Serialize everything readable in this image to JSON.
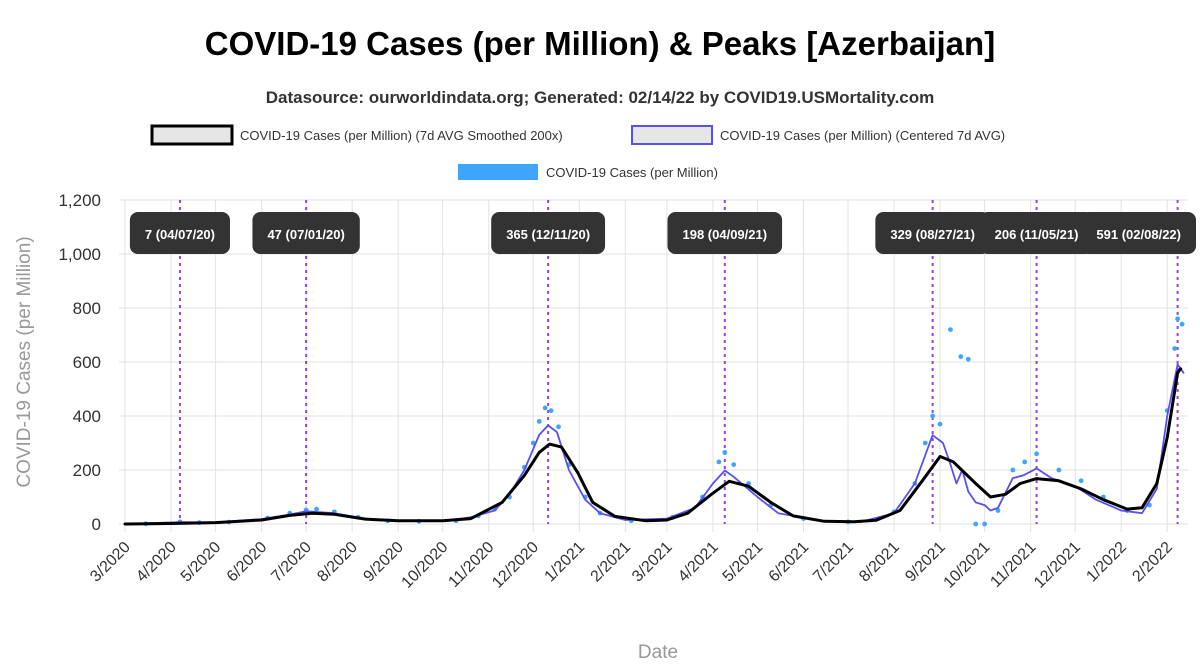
{
  "chart_data": {
    "type": "line",
    "title": "COVID-19 Cases (per Million) & Peaks [Azerbaijan]",
    "subtitle": "Datasource: ourworldindata.org; Generated: 02/14/22 by COVID19.USMortality.com",
    "xlabel": "Date",
    "ylabel": "COVID-19 Cases (per Million)",
    "ylim": [
      0,
      1200
    ],
    "y_ticks": [
      "0",
      "200",
      "400",
      "600",
      "800",
      "1,000",
      "1,200"
    ],
    "x_ticks": [
      "3/2020",
      "4/2020",
      "5/2020",
      "6/2020",
      "7/2020",
      "8/2020",
      "9/2020",
      "10/2020",
      "11/2020",
      "12/2020",
      "1/2021",
      "2/2021",
      "3/2021",
      "4/2021",
      "5/2021",
      "6/2021",
      "7/2021",
      "8/2021",
      "9/2021",
      "10/2021",
      "11/2021",
      "12/2021",
      "1/2022",
      "2/2022"
    ],
    "grid": true,
    "legend_position": "top",
    "legend": [
      {
        "name": "COVID-19 Cases (per Million) (7d AVG Smoothed 200x)",
        "color": "#000000",
        "style": "box"
      },
      {
        "name": "COVID-19 Cases (per Million) (Centered 7d AVG)",
        "color": "#5a4ff0",
        "style": "box"
      },
      {
        "name": "COVID-19 Cases (per Million)",
        "color": "#3fa6ff",
        "style": "bar"
      }
    ],
    "series": [
      {
        "name": "COVID-19 Cases (per Million) (7d AVG Smoothed 200x)",
        "color": "#000000",
        "points": [
          [
            "2020-03-01",
            0
          ],
          [
            "2020-04-01",
            2
          ],
          [
            "2020-05-01",
            5
          ],
          [
            "2020-06-01",
            15
          ],
          [
            "2020-06-20",
            32
          ],
          [
            "2020-07-05",
            40
          ],
          [
            "2020-07-20",
            36
          ],
          [
            "2020-08-10",
            18
          ],
          [
            "2020-09-01",
            12
          ],
          [
            "2020-10-01",
            12
          ],
          [
            "2020-10-20",
            20
          ],
          [
            "2020-11-10",
            80
          ],
          [
            "2020-11-25",
            180
          ],
          [
            "2020-12-05",
            265
          ],
          [
            "2020-12-12",
            296
          ],
          [
            "2020-12-20",
            285
          ],
          [
            "2020-12-31",
            190
          ],
          [
            "2021-01-10",
            80
          ],
          [
            "2021-01-25",
            28
          ],
          [
            "2021-02-15",
            12
          ],
          [
            "2021-03-01",
            15
          ],
          [
            "2021-03-15",
            40
          ],
          [
            "2021-03-31",
            110
          ],
          [
            "2021-04-12",
            158
          ],
          [
            "2021-04-25",
            140
          ],
          [
            "2021-05-10",
            80
          ],
          [
            "2021-05-25",
            30
          ],
          [
            "2021-06-15",
            10
          ],
          [
            "2021-07-05",
            8
          ],
          [
            "2021-07-20",
            14
          ],
          [
            "2021-08-05",
            50
          ],
          [
            "2021-08-20",
            160
          ],
          [
            "2021-09-01",
            250
          ],
          [
            "2021-09-10",
            230
          ],
          [
            "2021-09-25",
            150
          ],
          [
            "2021-10-05",
            100
          ],
          [
            "2021-10-15",
            110
          ],
          [
            "2021-10-25",
            150
          ],
          [
            "2021-11-05",
            168
          ],
          [
            "2021-11-20",
            160
          ],
          [
            "2021-12-05",
            130
          ],
          [
            "2021-12-20",
            90
          ],
          [
            "2022-01-05",
            55
          ],
          [
            "2022-01-15",
            60
          ],
          [
            "2022-01-25",
            150
          ],
          [
            "2022-02-01",
            320
          ],
          [
            "2022-02-08",
            560
          ],
          [
            "2022-02-10",
            575
          ]
        ]
      },
      {
        "name": "COVID-19 Cases (per Million) (Centered 7d AVG)",
        "color": "#5a4ff0",
        "points": [
          [
            "2020-03-01",
            0
          ],
          [
            "2020-04-07",
            7
          ],
          [
            "2020-05-01",
            6
          ],
          [
            "2020-06-01",
            18
          ],
          [
            "2020-06-20",
            35
          ],
          [
            "2020-07-01",
            47
          ],
          [
            "2020-07-20",
            40
          ],
          [
            "2020-08-10",
            20
          ],
          [
            "2020-09-01",
            12
          ],
          [
            "2020-10-01",
            11
          ],
          [
            "2020-10-20",
            25
          ],
          [
            "2020-11-05",
            50
          ],
          [
            "2020-11-15",
            110
          ],
          [
            "2020-11-25",
            200
          ],
          [
            "2020-12-05",
            330
          ],
          [
            "2020-12-11",
            365
          ],
          [
            "2020-12-17",
            340
          ],
          [
            "2020-12-25",
            200
          ],
          [
            "2021-01-05",
            90
          ],
          [
            "2021-01-15",
            40
          ],
          [
            "2021-02-01",
            15
          ],
          [
            "2021-03-01",
            20
          ],
          [
            "2021-03-20",
            60
          ],
          [
            "2021-04-01",
            150
          ],
          [
            "2021-04-09",
            198
          ],
          [
            "2021-04-15",
            175
          ],
          [
            "2021-05-01",
            100
          ],
          [
            "2021-05-15",
            40
          ],
          [
            "2021-06-15",
            10
          ],
          [
            "2021-07-10",
            8
          ],
          [
            "2021-08-01",
            40
          ],
          [
            "2021-08-15",
            150
          ],
          [
            "2021-08-27",
            329
          ],
          [
            "2021-09-03",
            300
          ],
          [
            "2021-09-08",
            220
          ],
          [
            "2021-09-12",
            150
          ],
          [
            "2021-09-16",
            200
          ],
          [
            "2021-09-20",
            120
          ],
          [
            "2021-09-25",
            80
          ],
          [
            "2021-10-01",
            70
          ],
          [
            "2021-10-05",
            50
          ],
          [
            "2021-10-10",
            60
          ],
          [
            "2021-10-20",
            170
          ],
          [
            "2021-10-27",
            180
          ],
          [
            "2021-11-05",
            206
          ],
          [
            "2021-11-15",
            170
          ],
          [
            "2021-12-01",
            140
          ],
          [
            "2021-12-15",
            90
          ],
          [
            "2022-01-01",
            50
          ],
          [
            "2022-01-15",
            40
          ],
          [
            "2022-01-25",
            130
          ],
          [
            "2022-02-01",
            400
          ],
          [
            "2022-02-08",
            591
          ],
          [
            "2022-02-12",
            560
          ]
        ]
      },
      {
        "name": "COVID-19 Cases (per Million)",
        "color": "#3fa6ff",
        "style": "scatter",
        "points": [
          [
            "2020-03-15",
            1
          ],
          [
            "2020-04-07",
            8
          ],
          [
            "2020-04-20",
            5
          ],
          [
            "2020-05-10",
            7
          ],
          [
            "2020-06-05",
            22
          ],
          [
            "2020-06-20",
            40
          ],
          [
            "2020-07-01",
            52
          ],
          [
            "2020-07-08",
            55
          ],
          [
            "2020-07-20",
            45
          ],
          [
            "2020-08-05",
            25
          ],
          [
            "2020-08-25",
            12
          ],
          [
            "2020-09-15",
            10
          ],
          [
            "2020-10-10",
            12
          ],
          [
            "2020-10-25",
            30
          ],
          [
            "2020-11-05",
            55
          ],
          [
            "2020-11-15",
            100
          ],
          [
            "2020-11-25",
            210
          ],
          [
            "2020-12-01",
            300
          ],
          [
            "2020-12-05",
            380
          ],
          [
            "2020-12-09",
            430
          ],
          [
            "2020-12-13",
            420
          ],
          [
            "2020-12-18",
            360
          ],
          [
            "2020-12-25",
            220
          ],
          [
            "2021-01-05",
            100
          ],
          [
            "2021-01-15",
            40
          ],
          [
            "2021-02-05",
            12
          ],
          [
            "2021-03-05",
            25
          ],
          [
            "2021-03-25",
            100
          ],
          [
            "2021-04-05",
            230
          ],
          [
            "2021-04-09",
            265
          ],
          [
            "2021-04-15",
            220
          ],
          [
            "2021-04-25",
            150
          ],
          [
            "2021-05-10",
            70
          ],
          [
            "2021-06-01",
            20
          ],
          [
            "2021-07-01",
            8
          ],
          [
            "2021-08-01",
            45
          ],
          [
            "2021-08-15",
            150
          ],
          [
            "2021-08-22",
            300
          ],
          [
            "2021-08-27",
            400
          ],
          [
            "2021-09-01",
            370
          ],
          [
            "2021-09-08",
            720
          ],
          [
            "2021-09-15",
            620
          ],
          [
            "2021-09-20",
            610
          ],
          [
            "2021-09-25",
            0
          ],
          [
            "2021-10-01",
            0
          ],
          [
            "2021-10-10",
            50
          ],
          [
            "2021-10-20",
            200
          ],
          [
            "2021-10-28",
            230
          ],
          [
            "2021-11-05",
            260
          ],
          [
            "2021-11-20",
            200
          ],
          [
            "2021-12-05",
            160
          ],
          [
            "2021-12-20",
            100
          ],
          [
            "2022-01-05",
            50
          ],
          [
            "2022-01-20",
            70
          ],
          [
            "2022-02-01",
            420
          ],
          [
            "2022-02-06",
            650
          ],
          [
            "2022-02-08",
            760
          ],
          [
            "2022-02-11",
            740
          ]
        ]
      }
    ],
    "peaks": [
      {
        "date": "2020-04-07",
        "label": "7 (04/07/20)"
      },
      {
        "date": "2020-07-01",
        "label": "47 (07/01/20)"
      },
      {
        "date": "2020-12-11",
        "label": "365 (12/11/20)"
      },
      {
        "date": "2021-04-09",
        "label": "198 (04/09/21)"
      },
      {
        "date": "2021-08-27",
        "label": "329 (08/27/21)"
      },
      {
        "date": "2021-11-05",
        "label": "206 (11/05/21)"
      },
      {
        "date": "2022-02-08",
        "label": "591 (02/08/22)"
      }
    ]
  }
}
